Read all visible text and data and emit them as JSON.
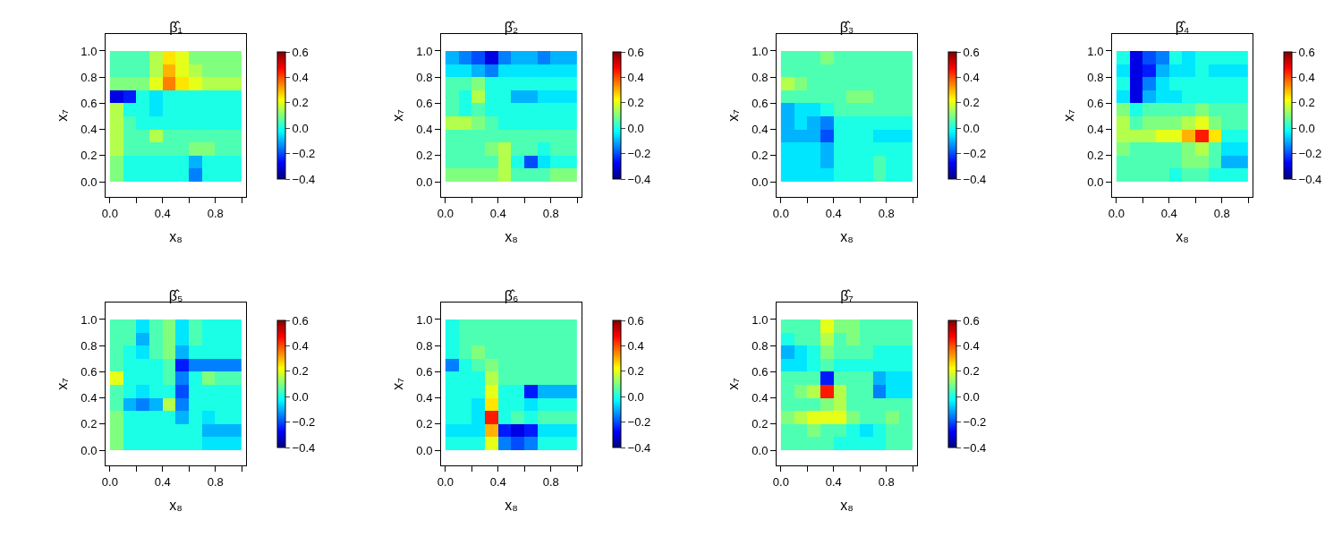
{
  "chart_data": [
    {
      "type": "heatmap",
      "title": "β̂₁",
      "xlabel": "x₈",
      "ylabel": "x₇",
      "x": [
        0.05,
        0.15,
        0.25,
        0.35,
        0.45,
        0.55,
        0.65,
        0.75,
        0.85,
        0.95
      ],
      "y": [
        0.95,
        0.85,
        0.75,
        0.65,
        0.55,
        0.45,
        0.35,
        0.25,
        0.15,
        0.05
      ],
      "cells": [
        [
          0.05,
          0.05,
          0.05,
          0.15,
          0.25,
          0.2,
          0.1,
          0.1,
          0.1,
          0.1
        ],
        [
          0.05,
          0.05,
          0.05,
          0.15,
          0.3,
          0.2,
          0.15,
          0.1,
          0.1,
          0.1
        ],
        [
          0.1,
          0.1,
          0.1,
          0.2,
          0.35,
          0.25,
          0.2,
          0.15,
          0.15,
          0.15
        ],
        [
          -0.3,
          -0.25,
          0.0,
          -0.05,
          0.0,
          0.0,
          0.0,
          0.0,
          0.0,
          0.0
        ],
        [
          0.15,
          0.0,
          0.0,
          -0.05,
          0.0,
          0.0,
          0.0,
          0.0,
          0.0,
          0.0
        ],
        [
          0.15,
          0.05,
          0.0,
          0.0,
          0.0,
          0.0,
          0.0,
          0.0,
          0.0,
          0.0
        ],
        [
          0.15,
          0.05,
          0.05,
          0.15,
          0.05,
          0.05,
          0.05,
          0.05,
          0.05,
          0.05
        ],
        [
          0.15,
          0.05,
          0.05,
          0.05,
          0.05,
          0.05,
          0.1,
          0.1,
          0.05,
          0.05
        ],
        [
          0.1,
          0.0,
          0.0,
          0.0,
          0.0,
          0.0,
          -0.1,
          0.0,
          0.0,
          0.0
        ],
        [
          0.1,
          0.0,
          0.0,
          0.0,
          0.0,
          0.0,
          -0.15,
          0.0,
          0.0,
          0.0
        ]
      ],
      "xlim": [
        -0.033,
        1.033
      ],
      "ylim": [
        -0.116,
        1.13
      ],
      "xticks": [
        {
          "value": 0,
          "label": "0.0"
        },
        {
          "value": 0.2,
          "label": null
        },
        {
          "value": 0.4,
          "label": "0.4"
        },
        {
          "value": 0.6,
          "label": null
        },
        {
          "value": 0.8,
          "label": "0.8"
        },
        {
          "value": 1,
          "label": null
        }
      ],
      "yticks": [
        {
          "value": 0,
          "label": "0.0"
        },
        {
          "value": 0.2,
          "label": "0.2"
        },
        {
          "value": 0.4,
          "label": "0.4"
        },
        {
          "value": 0.6,
          "label": "0.6"
        },
        {
          "value": 0.8,
          "label": "0.8"
        },
        {
          "value": 1,
          "label": "1.0"
        }
      ],
      "clim": [
        -0.4,
        0.6
      ],
      "cticks": [
        {
          "value": -0.4,
          "label": "−0.4"
        },
        {
          "value": -0.2,
          "label": "−0.2"
        },
        {
          "value": 0,
          "label": "0.0"
        },
        {
          "value": 0.2,
          "label": "0.2"
        },
        {
          "value": 0.4,
          "label": "0.4"
        },
        {
          "value": 0.6,
          "label": "0.6"
        }
      ]
    },
    {
      "type": "heatmap",
      "title": "β̂₂",
      "xlabel": "x₈",
      "ylabel": "x₇",
      "x": [
        0.05,
        0.15,
        0.25,
        0.35,
        0.45,
        0.55,
        0.65,
        0.75,
        0.85,
        0.95
      ],
      "y": [
        0.95,
        0.85,
        0.75,
        0.65,
        0.55,
        0.45,
        0.35,
        0.25,
        0.15,
        0.05
      ],
      "cells": [
        [
          -0.1,
          -0.15,
          -0.2,
          -0.3,
          -0.15,
          -0.1,
          -0.1,
          -0.15,
          -0.1,
          -0.1
        ],
        [
          -0.05,
          -0.05,
          -0.1,
          -0.15,
          -0.05,
          -0.05,
          -0.05,
          -0.05,
          -0.05,
          -0.05
        ],
        [
          0.05,
          0.05,
          0.1,
          0.0,
          0.0,
          0.0,
          0.0,
          0.0,
          0.0,
          0.0
        ],
        [
          0.05,
          0.0,
          0.15,
          0.0,
          0.0,
          -0.1,
          -0.1,
          -0.05,
          -0.05,
          -0.05
        ],
        [
          0.05,
          0.0,
          0.05,
          0.0,
          0.0,
          0.0,
          0.0,
          0.0,
          0.0,
          0.0
        ],
        [
          0.15,
          0.15,
          0.1,
          0.05,
          0.0,
          0.0,
          0.0,
          0.0,
          0.0,
          0.0
        ],
        [
          0.05,
          0.05,
          0.05,
          0.05,
          0.05,
          0.05,
          0.05,
          0.05,
          0.05,
          0.05
        ],
        [
          0.05,
          0.05,
          0.05,
          0.1,
          0.15,
          0.05,
          0.05,
          0.0,
          0.05,
          0.05
        ],
        [
          0.05,
          0.05,
          0.05,
          0.05,
          0.15,
          0.0,
          -0.2,
          -0.05,
          0.0,
          0.0
        ],
        [
          0.1,
          0.1,
          0.1,
          0.1,
          0.15,
          0.05,
          0.05,
          0.05,
          0.1,
          0.1
        ]
      ],
      "xlim": [
        -0.033,
        1.033
      ],
      "ylim": [
        -0.116,
        1.13
      ],
      "xticks": [
        {
          "value": 0,
          "label": "0.0"
        },
        {
          "value": 0.2,
          "label": null
        },
        {
          "value": 0.4,
          "label": "0.4"
        },
        {
          "value": 0.6,
          "label": null
        },
        {
          "value": 0.8,
          "label": "0.8"
        },
        {
          "value": 1,
          "label": null
        }
      ],
      "yticks": [
        {
          "value": 0,
          "label": "0.0"
        },
        {
          "value": 0.2,
          "label": "0.2"
        },
        {
          "value": 0.4,
          "label": "0.4"
        },
        {
          "value": 0.6,
          "label": "0.6"
        },
        {
          "value": 0.8,
          "label": "0.8"
        },
        {
          "value": 1,
          "label": "1.0"
        }
      ],
      "clim": [
        -0.4,
        0.6
      ],
      "cticks": [
        {
          "value": -0.4,
          "label": "−0.4"
        },
        {
          "value": -0.2,
          "label": "−0.2"
        },
        {
          "value": 0,
          "label": "0.0"
        },
        {
          "value": 0.2,
          "label": "0.2"
        },
        {
          "value": 0.4,
          "label": "0.4"
        },
        {
          "value": 0.6,
          "label": "0.6"
        }
      ]
    },
    {
      "type": "heatmap",
      "title": "β̂₃",
      "xlabel": "x₈",
      "ylabel": "x₇",
      "x": [
        0.05,
        0.15,
        0.25,
        0.35,
        0.45,
        0.55,
        0.65,
        0.75,
        0.85,
        0.95
      ],
      "y": [
        0.95,
        0.85,
        0.75,
        0.65,
        0.55,
        0.45,
        0.35,
        0.25,
        0.15,
        0.05
      ],
      "cells": [
        [
          0.05,
          0.05,
          0.05,
          0.1,
          0.05,
          0.05,
          0.05,
          0.05,
          0.05,
          0.05
        ],
        [
          0.05,
          0.05,
          0.05,
          0.05,
          0.05,
          0.05,
          0.05,
          0.05,
          0.05,
          0.05
        ],
        [
          0.15,
          0.1,
          0.05,
          0.05,
          0.05,
          0.05,
          0.05,
          0.05,
          0.05,
          0.05
        ],
        [
          0.05,
          0.05,
          0.05,
          0.05,
          0.05,
          0.1,
          0.1,
          0.05,
          0.05,
          0.05
        ],
        [
          -0.1,
          -0.05,
          -0.05,
          0.0,
          0.05,
          0.05,
          0.05,
          0.05,
          0.05,
          0.05
        ],
        [
          -0.1,
          -0.05,
          -0.1,
          -0.15,
          0.0,
          0.0,
          0.0,
          0.0,
          0.0,
          0.0
        ],
        [
          -0.1,
          -0.1,
          -0.1,
          -0.2,
          0.0,
          0.0,
          0.0,
          -0.05,
          -0.05,
          -0.05
        ],
        [
          -0.05,
          -0.05,
          -0.05,
          -0.1,
          0.0,
          0.0,
          0.0,
          0.0,
          0.0,
          0.0
        ],
        [
          -0.05,
          -0.05,
          -0.05,
          -0.1,
          0.0,
          0.0,
          0.0,
          0.05,
          0.0,
          0.0
        ],
        [
          -0.05,
          -0.05,
          -0.05,
          -0.05,
          0.0,
          0.0,
          0.0,
          0.05,
          0.0,
          0.0
        ]
      ],
      "xlim": [
        -0.033,
        1.033
      ],
      "ylim": [
        -0.116,
        1.13
      ],
      "xticks": [
        {
          "value": 0,
          "label": "0.0"
        },
        {
          "value": 0.2,
          "label": null
        },
        {
          "value": 0.4,
          "label": "0.4"
        },
        {
          "value": 0.6,
          "label": null
        },
        {
          "value": 0.8,
          "label": "0.8"
        },
        {
          "value": 1,
          "label": null
        }
      ],
      "yticks": [
        {
          "value": 0,
          "label": "0.0"
        },
        {
          "value": 0.2,
          "label": "0.2"
        },
        {
          "value": 0.4,
          "label": "0.4"
        },
        {
          "value": 0.6,
          "label": "0.6"
        },
        {
          "value": 0.8,
          "label": "0.8"
        },
        {
          "value": 1,
          "label": "1.0"
        }
      ],
      "clim": [
        -0.4,
        0.6
      ],
      "cticks": [
        {
          "value": -0.4,
          "label": "−0.4"
        },
        {
          "value": -0.2,
          "label": "−0.2"
        },
        {
          "value": 0,
          "label": "0.0"
        },
        {
          "value": 0.2,
          "label": "0.2"
        },
        {
          "value": 0.4,
          "label": "0.4"
        },
        {
          "value": 0.6,
          "label": "0.6"
        }
      ]
    },
    {
      "type": "heatmap",
      "title": "β̂₄",
      "xlabel": "x₈",
      "ylabel": "x₇",
      "x": [
        0.05,
        0.15,
        0.25,
        0.35,
        0.45,
        0.55,
        0.65,
        0.75,
        0.85,
        0.95
      ],
      "y": [
        0.95,
        0.85,
        0.75,
        0.65,
        0.55,
        0.45,
        0.35,
        0.25,
        0.15,
        0.05
      ],
      "cells": [
        [
          0.0,
          -0.3,
          -0.2,
          -0.15,
          0.0,
          -0.05,
          0.0,
          0.0,
          0.0,
          0.0
        ],
        [
          -0.05,
          -0.3,
          -0.25,
          -0.1,
          -0.05,
          -0.05,
          0.0,
          -0.05,
          -0.05,
          -0.05
        ],
        [
          0.0,
          -0.3,
          -0.15,
          -0.05,
          0.0,
          0.0,
          0.0,
          0.0,
          0.0,
          0.0
        ],
        [
          -0.05,
          -0.3,
          -0.1,
          -0.05,
          -0.05,
          0.0,
          0.0,
          0.0,
          0.0,
          0.0
        ],
        [
          0.1,
          0.0,
          0.05,
          0.05,
          0.05,
          0.05,
          0.1,
          0.05,
          0.05,
          0.05
        ],
        [
          0.15,
          0.05,
          0.1,
          0.1,
          0.1,
          0.15,
          0.2,
          0.1,
          0.05,
          0.05
        ],
        [
          0.15,
          0.15,
          0.15,
          0.2,
          0.2,
          0.3,
          0.45,
          0.25,
          0.0,
          0.0
        ],
        [
          0.1,
          0.05,
          0.05,
          0.05,
          0.05,
          0.1,
          0.15,
          0.05,
          -0.05,
          -0.05
        ],
        [
          0.05,
          0.05,
          0.05,
          0.05,
          0.05,
          0.1,
          0.1,
          0.05,
          -0.1,
          -0.1
        ],
        [
          0.05,
          0.05,
          0.05,
          0.05,
          0.0,
          0.05,
          0.05,
          0.0,
          0.0,
          0.0
        ]
      ],
      "xlim": [
        -0.033,
        1.033
      ],
      "ylim": [
        -0.116,
        1.13
      ],
      "xticks": [
        {
          "value": 0,
          "label": "0.0"
        },
        {
          "value": 0.2,
          "label": null
        },
        {
          "value": 0.4,
          "label": "0.4"
        },
        {
          "value": 0.6,
          "label": null
        },
        {
          "value": 0.8,
          "label": "0.8"
        },
        {
          "value": 1,
          "label": null
        }
      ],
      "yticks": [
        {
          "value": 0,
          "label": "0.0"
        },
        {
          "value": 0.2,
          "label": "0.2"
        },
        {
          "value": 0.4,
          "label": "0.4"
        },
        {
          "value": 0.6,
          "label": "0.6"
        },
        {
          "value": 0.8,
          "label": "0.8"
        },
        {
          "value": 1,
          "label": "1.0"
        }
      ],
      "clim": [
        -0.4,
        0.6
      ],
      "cticks": [
        {
          "value": -0.4,
          "label": "−0.4"
        },
        {
          "value": -0.2,
          "label": "−0.2"
        },
        {
          "value": 0,
          "label": "0.0"
        },
        {
          "value": 0.2,
          "label": "0.2"
        },
        {
          "value": 0.4,
          "label": "0.4"
        },
        {
          "value": 0.6,
          "label": "0.6"
        }
      ]
    },
    {
      "type": "heatmap",
      "title": "β̂₅",
      "xlabel": "x₈",
      "ylabel": "x₇",
      "x": [
        0.05,
        0.15,
        0.25,
        0.35,
        0.45,
        0.55,
        0.65,
        0.75,
        0.85,
        0.95
      ],
      "y": [
        0.95,
        0.85,
        0.75,
        0.65,
        0.55,
        0.45,
        0.35,
        0.25,
        0.15,
        0.05
      ],
      "cells": [
        [
          0.05,
          0.05,
          -0.05,
          0.05,
          0.1,
          -0.05,
          0.05,
          0.0,
          0.0,
          0.0
        ],
        [
          0.05,
          0.05,
          -0.1,
          0.05,
          0.1,
          -0.05,
          0.05,
          0.0,
          0.0,
          0.0
        ],
        [
          0.05,
          0.0,
          -0.05,
          0.05,
          0.1,
          -0.1,
          0.0,
          0.0,
          0.0,
          0.0
        ],
        [
          0.05,
          0.0,
          0.0,
          0.0,
          0.05,
          -0.25,
          -0.15,
          -0.15,
          -0.15,
          -0.15
        ],
        [
          0.2,
          0.0,
          0.0,
          0.0,
          0.05,
          -0.15,
          0.0,
          0.1,
          0.05,
          0.05
        ],
        [
          0.05,
          0.0,
          -0.05,
          0.0,
          0.0,
          -0.2,
          0.0,
          0.0,
          0.0,
          0.0
        ],
        [
          0.05,
          -0.1,
          -0.15,
          -0.1,
          0.15,
          -0.15,
          0.0,
          0.0,
          0.0,
          0.0
        ],
        [
          0.1,
          0.0,
          0.0,
          0.0,
          0.0,
          -0.1,
          0.0,
          -0.05,
          0.0,
          0.0
        ],
        [
          0.1,
          0.0,
          0.0,
          0.0,
          0.0,
          0.0,
          0.0,
          -0.1,
          -0.1,
          -0.1
        ],
        [
          0.1,
          0.0,
          0.0,
          0.0,
          0.0,
          0.0,
          0.0,
          -0.05,
          -0.05,
          -0.05
        ]
      ],
      "xlim": [
        -0.033,
        1.033
      ],
      "ylim": [
        -0.116,
        1.13
      ],
      "xticks": [
        {
          "value": 0,
          "label": "0.0"
        },
        {
          "value": 0.2,
          "label": null
        },
        {
          "value": 0.4,
          "label": "0.4"
        },
        {
          "value": 0.6,
          "label": null
        },
        {
          "value": 0.8,
          "label": "0.8"
        },
        {
          "value": 1,
          "label": null
        }
      ],
      "yticks": [
        {
          "value": 0,
          "label": "0.0"
        },
        {
          "value": 0.2,
          "label": "0.2"
        },
        {
          "value": 0.4,
          "label": "0.4"
        },
        {
          "value": 0.6,
          "label": "0.6"
        },
        {
          "value": 0.8,
          "label": "0.8"
        },
        {
          "value": 1,
          "label": "1.0"
        }
      ],
      "clim": [
        -0.4,
        0.6
      ],
      "cticks": [
        {
          "value": -0.4,
          "label": "−0.4"
        },
        {
          "value": -0.2,
          "label": "−0.2"
        },
        {
          "value": 0,
          "label": "0.0"
        },
        {
          "value": 0.2,
          "label": "0.2"
        },
        {
          "value": 0.4,
          "label": "0.4"
        },
        {
          "value": 0.6,
          "label": "0.6"
        }
      ]
    },
    {
      "type": "heatmap",
      "title": "β̂₆",
      "xlabel": "x₈",
      "ylabel": "x₇",
      "x": [
        0.05,
        0.15,
        0.25,
        0.35,
        0.45,
        0.55,
        0.65,
        0.75,
        0.85,
        0.95
      ],
      "y": [
        0.95,
        0.85,
        0.75,
        0.65,
        0.55,
        0.45,
        0.35,
        0.25,
        0.15,
        0.05
      ],
      "cells": [
        [
          0.0,
          0.05,
          0.05,
          0.05,
          0.05,
          0.05,
          0.05,
          0.05,
          0.05,
          0.05
        ],
        [
          0.0,
          0.05,
          0.05,
          0.05,
          0.05,
          0.05,
          0.05,
          0.05,
          0.05,
          0.05
        ],
        [
          0.0,
          0.05,
          0.1,
          0.05,
          0.05,
          0.05,
          0.05,
          0.05,
          0.05,
          0.05
        ],
        [
          -0.15,
          0.0,
          0.05,
          0.1,
          0.05,
          0.05,
          0.05,
          0.05,
          0.05,
          0.05
        ],
        [
          0.0,
          0.0,
          0.0,
          0.15,
          0.05,
          0.05,
          0.05,
          0.05,
          0.05,
          0.05
        ],
        [
          0.0,
          0.0,
          0.0,
          0.2,
          0.0,
          0.0,
          -0.25,
          -0.1,
          -0.1,
          -0.1
        ],
        [
          0.0,
          0.0,
          -0.05,
          0.25,
          0.0,
          0.0,
          -0.05,
          0.0,
          0.0,
          0.0
        ],
        [
          0.0,
          0.0,
          -0.05,
          0.45,
          0.0,
          0.05,
          0.0,
          0.05,
          0.05,
          0.05
        ],
        [
          -0.05,
          -0.05,
          -0.05,
          0.3,
          -0.25,
          -0.3,
          -0.25,
          -0.05,
          -0.05,
          -0.05
        ],
        [
          0.0,
          0.0,
          0.0,
          0.2,
          -0.15,
          -0.2,
          -0.15,
          0.0,
          0.0,
          0.0
        ]
      ],
      "xlim": [
        -0.033,
        1.033
      ],
      "ylim": [
        -0.116,
        1.13
      ],
      "xticks": [
        {
          "value": 0,
          "label": "0.0"
        },
        {
          "value": 0.2,
          "label": null
        },
        {
          "value": 0.4,
          "label": "0.4"
        },
        {
          "value": 0.6,
          "label": null
        },
        {
          "value": 0.8,
          "label": "0.8"
        },
        {
          "value": 1,
          "label": null
        }
      ],
      "yticks": [
        {
          "value": 0,
          "label": "0.0"
        },
        {
          "value": 0.2,
          "label": "0.2"
        },
        {
          "value": 0.4,
          "label": "0.4"
        },
        {
          "value": 0.6,
          "label": "0.6"
        },
        {
          "value": 0.8,
          "label": "0.8"
        },
        {
          "value": 1,
          "label": "1.0"
        }
      ],
      "clim": [
        -0.4,
        0.6
      ],
      "cticks": [
        {
          "value": -0.4,
          "label": "−0.4"
        },
        {
          "value": -0.2,
          "label": "−0.2"
        },
        {
          "value": 0,
          "label": "0.0"
        },
        {
          "value": 0.2,
          "label": "0.2"
        },
        {
          "value": 0.4,
          "label": "0.4"
        },
        {
          "value": 0.6,
          "label": "0.6"
        }
      ]
    },
    {
      "type": "heatmap",
      "title": "β̂₇",
      "xlabel": "x₈",
      "ylabel": "x₇",
      "x": [
        0.05,
        0.15,
        0.25,
        0.35,
        0.45,
        0.55,
        0.65,
        0.75,
        0.85,
        0.95
      ],
      "y": [
        0.95,
        0.85,
        0.75,
        0.65,
        0.55,
        0.45,
        0.35,
        0.25,
        0.15,
        0.05
      ],
      "cells": [
        [
          0.05,
          0.05,
          0.05,
          0.2,
          0.1,
          0.1,
          0.05,
          0.05,
          0.05,
          0.05
        ],
        [
          0.0,
          0.05,
          0.05,
          0.15,
          0.05,
          0.1,
          0.05,
          0.05,
          0.05,
          0.05
        ],
        [
          -0.1,
          -0.05,
          0.0,
          0.1,
          0.05,
          0.05,
          0.05,
          0.0,
          0.0,
          0.0
        ],
        [
          -0.05,
          -0.05,
          0.0,
          0.05,
          0.0,
          0.0,
          0.0,
          0.0,
          0.0,
          0.0
        ],
        [
          0.05,
          0.05,
          0.05,
          -0.25,
          0.05,
          0.05,
          0.05,
          -0.1,
          -0.05,
          -0.05
        ],
        [
          0.05,
          0.1,
          0.15,
          0.45,
          0.15,
          0.05,
          0.05,
          -0.15,
          -0.05,
          -0.05
        ],
        [
          0.05,
          0.05,
          0.05,
          0.1,
          0.15,
          0.05,
          0.05,
          0.05,
          0.05,
          0.05
        ],
        [
          0.1,
          0.15,
          0.2,
          0.2,
          0.2,
          0.1,
          0.05,
          0.05,
          0.1,
          0.05
        ],
        [
          0.05,
          0.05,
          0.1,
          0.05,
          0.05,
          0.0,
          -0.05,
          0.0,
          0.05,
          0.05
        ],
        [
          0.05,
          0.05,
          0.05,
          0.05,
          0.0,
          0.0,
          0.0,
          0.0,
          0.05,
          0.05
        ]
      ],
      "xlim": [
        -0.033,
        1.033
      ],
      "ylim": [
        -0.116,
        1.13
      ],
      "xticks": [
        {
          "value": 0,
          "label": "0.0"
        },
        {
          "value": 0.2,
          "label": null
        },
        {
          "value": 0.4,
          "label": "0.4"
        },
        {
          "value": 0.6,
          "label": null
        },
        {
          "value": 0.8,
          "label": "0.8"
        },
        {
          "value": 1,
          "label": null
        }
      ],
      "yticks": [
        {
          "value": 0,
          "label": "0.0"
        },
        {
          "value": 0.2,
          "label": "0.2"
        },
        {
          "value": 0.4,
          "label": "0.4"
        },
        {
          "value": 0.6,
          "label": "0.6"
        },
        {
          "value": 0.8,
          "label": "0.8"
        },
        {
          "value": 1,
          "label": "1.0"
        }
      ],
      "clim": [
        -0.4,
        0.6
      ],
      "cticks": [
        {
          "value": -0.4,
          "label": "−0.4"
        },
        {
          "value": -0.2,
          "label": "−0.2"
        },
        {
          "value": 0,
          "label": "0.0"
        },
        {
          "value": 0.2,
          "label": "0.2"
        },
        {
          "value": 0.4,
          "label": "0.4"
        },
        {
          "value": 0.6,
          "label": "0.6"
        }
      ]
    }
  ]
}
